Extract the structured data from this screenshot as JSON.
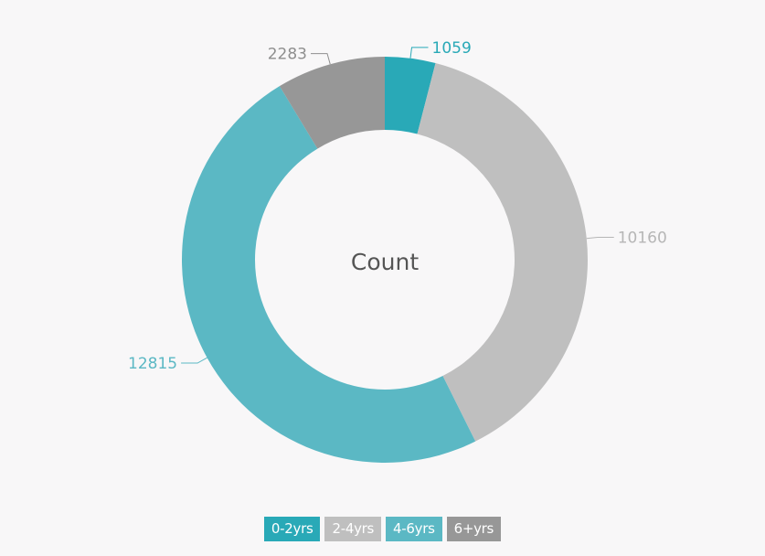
{
  "chart_data": {
    "type": "pie",
    "donut": true,
    "center_label": "Count",
    "legend_position": "bottom",
    "slices": [
      {
        "label": "0-2yrs",
        "value": 1059,
        "color": "#29a9b7",
        "label_color": "#29a9b7"
      },
      {
        "label": "2-4yrs",
        "value": 10160,
        "color": "#bfbfbf",
        "label_color": "#b6b6b6"
      },
      {
        "label": "4-6yrs",
        "value": 12815,
        "color": "#5bb8c4",
        "label_color": "#5bb8c4"
      },
      {
        "label": "6+yrs",
        "value": 2283,
        "color": "#979797",
        "label_color": "#8e8e8e"
      }
    ]
  }
}
